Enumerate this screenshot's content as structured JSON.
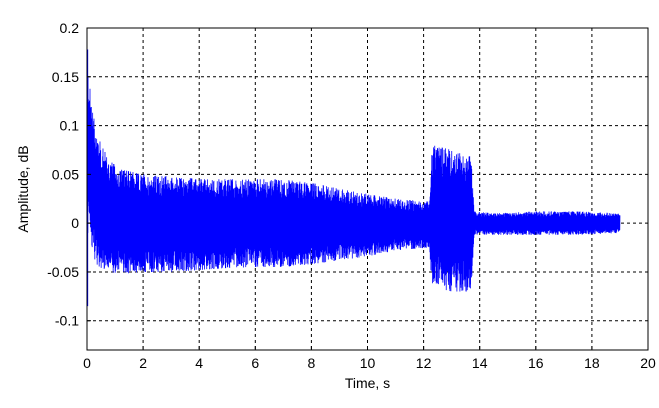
{
  "chart_data": {
    "type": "line",
    "xlabel": "Time, s",
    "ylabel": "Amplitude, dB",
    "xlim": [
      0,
      20
    ],
    "ylim": [
      -0.13,
      0.2
    ],
    "xticks": [
      0,
      2,
      4,
      6,
      8,
      10,
      12,
      14,
      16,
      18,
      20
    ],
    "yticks": [
      -0.1,
      -0.05,
      0,
      0.05,
      0.1,
      0.15,
      0.2
    ],
    "ytick_labels": [
      "-0.1",
      "-0.05",
      "0",
      "0.05",
      "0.1",
      "0.15",
      "0.2"
    ],
    "grid": true,
    "grid_style": "dashed",
    "series": [
      {
        "color": "#0000ff",
        "style": "dense oscillating signal envelope",
        "x": [
          0,
          0.05,
          0.15,
          0.3,
          0.5,
          0.8,
          1.2,
          2,
          3,
          4,
          5,
          6,
          7,
          8,
          9,
          10,
          11,
          12.2,
          12.3,
          13,
          13.7,
          13.8,
          14.5,
          16,
          17.5,
          19
        ],
        "upper": [
          0.175,
          0.15,
          0.13,
          0.1,
          0.08,
          0.065,
          0.055,
          0.05,
          0.048,
          0.045,
          0.045,
          0.045,
          0.045,
          0.042,
          0.035,
          0.03,
          0.025,
          0.022,
          0.08,
          0.075,
          0.07,
          0.012,
          0.01,
          0.012,
          0.012,
          0.01
        ],
        "lower": [
          -0.08,
          0.02,
          -0.02,
          -0.04,
          -0.048,
          -0.05,
          -0.052,
          -0.05,
          -0.05,
          -0.048,
          -0.046,
          -0.045,
          -0.045,
          -0.042,
          -0.038,
          -0.034,
          -0.028,
          -0.025,
          -0.065,
          -0.07,
          -0.07,
          -0.012,
          -0.012,
          -0.012,
          -0.012,
          -0.01
        ]
      }
    ]
  }
}
